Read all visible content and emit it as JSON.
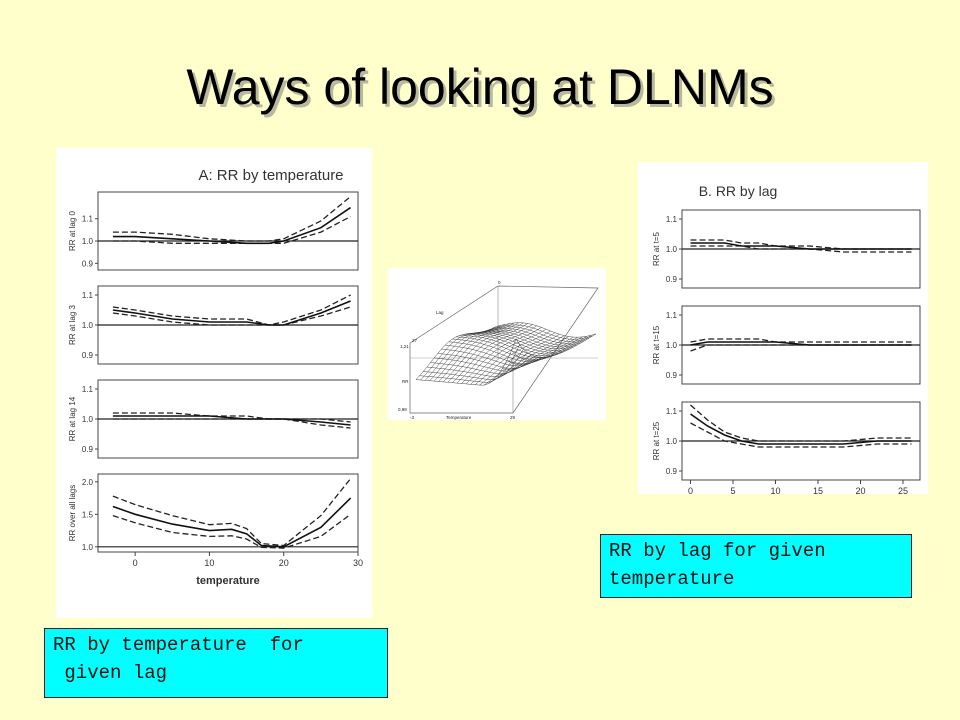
{
  "slide": {
    "title": "Ways of looking at DLNMs",
    "callout_left": "RR by temperature  for\n given lag",
    "callout_right": "RR by lag for given\ntemperature"
  },
  "chart_data": [
    {
      "type": "line",
      "title": "A: RR by temperature",
      "xlabel": "temperature",
      "x_ticks": [
        0,
        10,
        20,
        30
      ],
      "xlim": [
        -5,
        30
      ],
      "panels": [
        {
          "ylabel": "RR at lag 0",
          "yticks": [
            0.9,
            1.0,
            1.1
          ],
          "ylim": [
            0.87,
            1.22
          ],
          "x": [
            -3,
            0,
            5,
            10,
            15,
            18,
            20,
            25,
            29
          ],
          "estimate": [
            1.02,
            1.02,
            1.01,
            1.0,
            0.99,
            0.99,
            1.0,
            1.06,
            1.15
          ],
          "upper": [
            1.04,
            1.04,
            1.03,
            1.01,
            1.0,
            1.0,
            1.01,
            1.09,
            1.2
          ],
          "lower": [
            1.0,
            1.0,
            0.99,
            0.99,
            0.99,
            0.99,
            0.99,
            1.04,
            1.11
          ]
        },
        {
          "ylabel": "RR at lag 3",
          "yticks": [
            0.9,
            1.0,
            1.1
          ],
          "ylim": [
            0.87,
            1.13
          ],
          "x": [
            -3,
            0,
            5,
            10,
            15,
            18,
            20,
            25,
            29
          ],
          "estimate": [
            1.05,
            1.04,
            1.02,
            1.01,
            1.01,
            1.0,
            1.0,
            1.04,
            1.08
          ],
          "upper": [
            1.06,
            1.05,
            1.03,
            1.02,
            1.02,
            1.0,
            1.01,
            1.05,
            1.1
          ],
          "lower": [
            1.04,
            1.03,
            1.01,
            1.0,
            1.0,
            1.0,
            1.0,
            1.03,
            1.06
          ]
        },
        {
          "ylabel": "RR at lag 14",
          "yticks": [
            0.9,
            1.0,
            1.1
          ],
          "ylim": [
            0.87,
            1.13
          ],
          "x": [
            -3,
            0,
            5,
            10,
            15,
            18,
            20,
            25,
            29
          ],
          "estimate": [
            1.01,
            1.01,
            1.01,
            1.01,
            1.0,
            1.0,
            1.0,
            0.99,
            0.98
          ],
          "upper": [
            1.02,
            1.02,
            1.02,
            1.01,
            1.01,
            1.0,
            1.0,
            1.0,
            0.99
          ],
          "lower": [
            1.0,
            1.0,
            1.0,
            1.0,
            1.0,
            1.0,
            1.0,
            0.98,
            0.97
          ]
        },
        {
          "ylabel": "RR over all lags",
          "yticks": [
            1.0,
            1.5,
            2.0
          ],
          "ylim": [
            0.92,
            2.12
          ],
          "x": [
            -3,
            0,
            5,
            10,
            13,
            15,
            17,
            20,
            25,
            29
          ],
          "estimate": [
            1.62,
            1.5,
            1.35,
            1.25,
            1.27,
            1.2,
            1.02,
            1.0,
            1.3,
            1.75
          ],
          "upper": [
            1.78,
            1.65,
            1.48,
            1.34,
            1.36,
            1.28,
            1.05,
            1.02,
            1.48,
            2.05
          ],
          "lower": [
            1.48,
            1.37,
            1.22,
            1.16,
            1.17,
            1.12,
            0.99,
            0.98,
            1.16,
            1.5
          ]
        }
      ]
    },
    {
      "type": "surface",
      "axis_labels": {
        "lag": "Lag",
        "rr": "RR",
        "temperature": "Temperature"
      },
      "lag_range": [
        "0",
        "27"
      ],
      "rr_range": [
        "0,98",
        "1,21"
      ],
      "temperature_range": [
        "-3",
        "29"
      ]
    },
    {
      "type": "line",
      "title": "B. RR by lag",
      "xlabel": "",
      "x_ticks": [
        0,
        5,
        10,
        15,
        20,
        25
      ],
      "xlim": [
        -1,
        27
      ],
      "panels": [
        {
          "ylabel": "RR at t=5",
          "yticks": [
            0.9,
            1.0,
            1.1
          ],
          "ylim": [
            0.87,
            1.13
          ],
          "x": [
            0,
            2,
            4,
            6,
            8,
            10,
            14,
            18,
            22,
            26
          ],
          "estimate": [
            1.02,
            1.02,
            1.02,
            1.01,
            1.01,
            1.01,
            1.0,
            1.0,
            1.0,
            1.0
          ],
          "upper": [
            1.03,
            1.03,
            1.03,
            1.02,
            1.02,
            1.01,
            1.01,
            1.0,
            1.0,
            1.0
          ],
          "lower": [
            1.01,
            1.01,
            1.01,
            1.01,
            1.0,
            1.0,
            1.0,
            0.99,
            0.99,
            0.99
          ]
        },
        {
          "ylabel": "RR at t=15",
          "yticks": [
            0.9,
            1.0,
            1.1
          ],
          "ylim": [
            0.87,
            1.13
          ],
          "x": [
            0,
            2,
            4,
            6,
            8,
            10,
            14,
            18,
            22,
            26
          ],
          "estimate": [
            1.0,
            1.01,
            1.01,
            1.01,
            1.01,
            1.01,
            1.0,
            1.0,
            1.0,
            1.0
          ],
          "upper": [
            1.01,
            1.02,
            1.02,
            1.02,
            1.02,
            1.01,
            1.01,
            1.01,
            1.01,
            1.01
          ],
          "lower": [
            0.98,
            1.0,
            1.0,
            1.0,
            1.0,
            1.0,
            1.0,
            1.0,
            1.0,
            1.0
          ]
        },
        {
          "ylabel": "RR at t=25",
          "yticks": [
            0.9,
            1.0,
            1.1
          ],
          "ylim": [
            0.87,
            1.13
          ],
          "x": [
            0,
            2,
            4,
            6,
            8,
            10,
            14,
            18,
            22,
            26
          ],
          "estimate": [
            1.09,
            1.05,
            1.02,
            1.0,
            0.99,
            0.99,
            0.99,
            0.99,
            1.0,
            1.0
          ],
          "upper": [
            1.12,
            1.07,
            1.03,
            1.01,
            1.0,
            1.0,
            1.0,
            1.0,
            1.01,
            1.01
          ],
          "lower": [
            1.06,
            1.03,
            1.0,
            0.99,
            0.98,
            0.98,
            0.98,
            0.98,
            0.99,
            0.99
          ]
        }
      ]
    }
  ]
}
